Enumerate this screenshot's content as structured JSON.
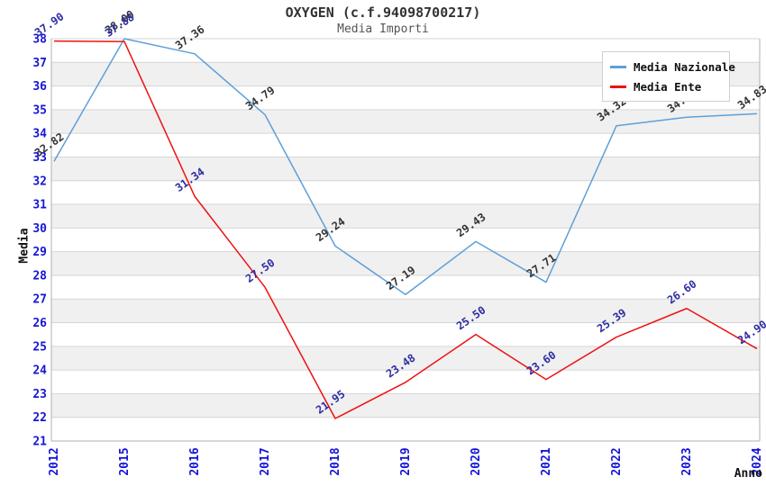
{
  "header": {
    "title": "OXYGEN (c.f.94098700217)",
    "subtitle": "Media Importi"
  },
  "axes": {
    "y_title": "Media",
    "x_title": "Anno",
    "tick_color": "#1515d6"
  },
  "legend": {
    "position": "top-right",
    "items": [
      {
        "label": "Media Nazionale",
        "color": "#5e9fd8"
      },
      {
        "label": "Media Ente",
        "color": "#ee1111"
      }
    ]
  },
  "colors": {
    "band_even": "#ffffff",
    "band_odd": "#f0f0f0",
    "gridline": "#d6d6d6",
    "plot_border": "#b0b0b0",
    "title_text": "#333333",
    "subtitle_text": "#555555"
  },
  "chart_data": {
    "type": "line",
    "title": "OXYGEN (c.f.94098700217)",
    "subtitle": "Media Importi",
    "xlabel": "Anno",
    "ylabel": "Media",
    "x": [
      "2012",
      "2015",
      "2016",
      "2017",
      "2018",
      "2019",
      "2020",
      "2021",
      "2022",
      "2023",
      "2024"
    ],
    "ylim": [
      21,
      38
    ],
    "y_tick_step": 1,
    "grid": true,
    "legend_position": "top-right",
    "series": [
      {
        "name": "Media Nazionale",
        "color": "#5e9fd8",
        "label_color": "#333333",
        "values": [
          32.82,
          38.0,
          37.36,
          34.79,
          29.24,
          27.19,
          29.43,
          27.71,
          34.32,
          34.68,
          34.83
        ]
      },
      {
        "name": "Media Ente",
        "color": "#ee1111",
        "label_color": "#2d2da6",
        "values": [
          37.9,
          37.88,
          31.34,
          27.5,
          21.95,
          23.48,
          25.5,
          23.6,
          25.39,
          26.6,
          24.9
        ]
      }
    ]
  }
}
